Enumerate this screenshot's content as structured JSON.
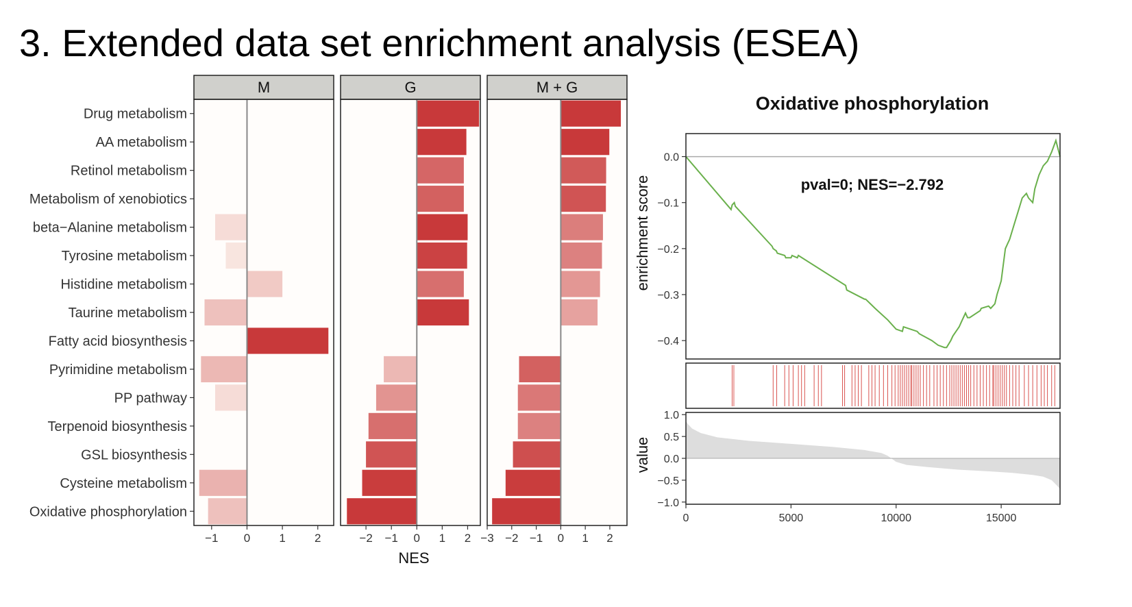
{
  "slide": {
    "title": "3. Extended data set enrichment analysis (ESEA)"
  },
  "colors": {
    "panel_bg": "#fffdfb",
    "strip_bg": "#d0d0cc",
    "bar_low": "#fbeee8",
    "bar_high": "#c8393a",
    "es_line": "#6ab04c",
    "hit_line": "#d9534f",
    "value_fill": "#dddddd",
    "zero_line": "#aaaaaa"
  },
  "chart_data": [
    {
      "type": "bar",
      "orientation": "horizontal",
      "facets": [
        "M",
        "G",
        "M + G"
      ],
      "categories": [
        "Drug metabolism",
        "AA metabolism",
        "Retinol metabolism",
        "Metabolism of xenobiotics",
        "beta−Alanine metabolism",
        "Tyrosine metabolism",
        "Histidine metabolism",
        "Taurine metabolism",
        "Fatty acid biosynthesis",
        "Pyrimidine metabolism",
        "PP pathway",
        "Terpenoid biosynthesis",
        "GSL biosynthesis",
        "Cysteine metabolism",
        "Oxidative phosphorylation"
      ],
      "series": [
        {
          "name": "M",
          "values": [
            null,
            null,
            null,
            null,
            -0.9,
            -0.6,
            1.0,
            -1.2,
            2.3,
            -1.3,
            -0.9,
            null,
            null,
            -1.35,
            -1.1
          ],
          "significance": [
            0,
            0,
            0,
            0,
            0.1,
            0.05,
            0.2,
            0.25,
            1.0,
            0.3,
            0.1,
            0,
            0,
            0.33,
            0.25
          ],
          "xlim": [
            -1.5,
            2.45
          ],
          "ticks": [
            -1,
            0,
            1,
            2
          ]
        },
        {
          "name": "G",
          "values": [
            2.45,
            1.95,
            1.85,
            1.85,
            2.0,
            1.98,
            1.85,
            2.05,
            null,
            -1.3,
            -1.6,
            -1.9,
            -2.0,
            -2.15,
            -2.75
          ],
          "significance": [
            1.0,
            1.0,
            0.75,
            0.78,
            1.0,
            0.95,
            0.7,
            1.0,
            0,
            0.3,
            0.5,
            0.7,
            0.85,
            0.98,
            1.0
          ],
          "xlim": [
            -3.0,
            2.5
          ],
          "ticks": [
            -2,
            -1,
            0,
            1,
            2
          ]
        },
        {
          "name": "M + G",
          "values": [
            2.45,
            1.98,
            1.85,
            1.84,
            1.72,
            1.68,
            1.6,
            1.5,
            null,
            -1.7,
            -1.75,
            -1.75,
            -1.95,
            -2.25,
            -2.8
          ],
          "significance": [
            1.0,
            1.0,
            0.82,
            0.85,
            0.62,
            0.6,
            0.48,
            0.42,
            0,
            0.78,
            0.65,
            0.6,
            0.88,
            0.98,
            1.0
          ],
          "xlim": [
            -3.0,
            2.7
          ],
          "ticks": [
            -3,
            -2,
            -1,
            0,
            1,
            2
          ]
        }
      ],
      "xlabel": "NES"
    },
    {
      "type": "line",
      "title": "Oxidative phosphorylation",
      "ylabel": "enrichment score",
      "annotation": "pval=0; NES=−2.792",
      "xlim": [
        0,
        17800
      ],
      "ylim": [
        -0.44,
        0.05
      ],
      "yticks": [
        0.0,
        -0.1,
        -0.2,
        -0.3,
        -0.4
      ],
      "ytick_labels": [
        "0.0",
        "−0.1",
        "−0.2",
        "−0.3",
        "−0.4"
      ],
      "x": [
        0,
        2150,
        2200,
        2300,
        2350,
        4100,
        4150,
        4300,
        4350,
        4700,
        4750,
        5000,
        5050,
        5300,
        5350,
        7600,
        7650,
        8500,
        8550,
        9000,
        9600,
        10000,
        10300,
        10350,
        11000,
        11100,
        11700,
        12000,
        12300,
        12400,
        12600,
        12700,
        13000,
        13100,
        13300,
        13400,
        13500,
        14000,
        14050,
        14400,
        14500,
        14700,
        14800,
        15000,
        15200,
        15300,
        15400,
        15600,
        15800,
        16000,
        16200,
        16300,
        16500,
        16600,
        16800,
        17000,
        17200,
        17400,
        17600,
        17800
      ],
      "y": [
        0.0,
        -0.115,
        -0.105,
        -0.1,
        -0.108,
        -0.195,
        -0.2,
        -0.205,
        -0.21,
        -0.215,
        -0.22,
        -0.22,
        -0.215,
        -0.22,
        -0.215,
        -0.28,
        -0.29,
        -0.31,
        -0.31,
        -0.33,
        -0.355,
        -0.375,
        -0.38,
        -0.37,
        -0.38,
        -0.385,
        -0.4,
        -0.41,
        -0.415,
        -0.415,
        -0.4,
        -0.39,
        -0.37,
        -0.36,
        -0.34,
        -0.35,
        -0.35,
        -0.335,
        -0.33,
        -0.325,
        -0.33,
        -0.32,
        -0.3,
        -0.27,
        -0.2,
        -0.19,
        -0.18,
        -0.15,
        -0.12,
        -0.09,
        -0.08,
        -0.09,
        -0.1,
        -0.07,
        -0.04,
        -0.02,
        -0.01,
        0.01,
        0.035,
        0.0
      ],
      "hits": [
        2200,
        2280,
        4150,
        4320,
        4700,
        4900,
        5100,
        5350,
        5500,
        5650,
        6100,
        6300,
        6450,
        7450,
        7550,
        7900,
        8050,
        8200,
        8350,
        8700,
        8850,
        9000,
        9200,
        9400,
        9600,
        9800,
        9950,
        10100,
        10200,
        10300,
        10400,
        10500,
        10600,
        10700,
        10750,
        10850,
        10950,
        11050,
        11150,
        11300,
        11450,
        11600,
        11800,
        11950,
        12100,
        12250,
        12400,
        12550,
        12650,
        12750,
        12850,
        12950,
        13050,
        13150,
        13250,
        13350,
        13450,
        13550,
        13700,
        13850,
        14000,
        14150,
        14300,
        14450,
        14600,
        14650,
        14750,
        14850,
        14950,
        15050,
        15150,
        15250,
        15400,
        15550,
        15700,
        15850,
        16100,
        16300,
        16500,
        16700,
        16900,
        17050,
        17200,
        17400,
        17550
      ]
    },
    {
      "type": "area",
      "ylabel": "value",
      "xlim": [
        0,
        17800
      ],
      "ylim": [
        -1.05,
        1.05
      ],
      "yticks": [
        1.0,
        0.5,
        0.0,
        -0.5,
        -1.0
      ],
      "ytick_labels": [
        "1.0",
        "0.5",
        "0.0",
        "−0.5",
        "−1.0"
      ],
      "xticks": [
        0,
        5000,
        10000,
        15000
      ],
      "xtick_labels": [
        "0",
        "5000",
        "10000",
        "15000"
      ],
      "x": [
        0,
        100,
        300,
        700,
        1500,
        3000,
        5000,
        7000,
        8500,
        9300,
        9600,
        9800,
        10000,
        10500,
        11500,
        13000,
        14500,
        15500,
        16500,
        17000,
        17400,
        17650,
        17800
      ],
      "y": [
        0.85,
        0.78,
        0.68,
        0.58,
        0.48,
        0.4,
        0.33,
        0.26,
        0.19,
        0.12,
        0.06,
        -0.01,
        -0.08,
        -0.15,
        -0.2,
        -0.26,
        -0.3,
        -0.33,
        -0.38,
        -0.42,
        -0.5,
        -0.62,
        -0.7
      ]
    }
  ]
}
